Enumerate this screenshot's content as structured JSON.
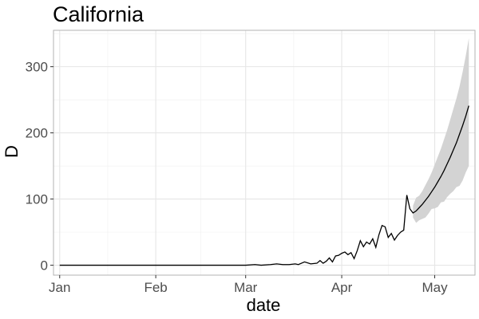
{
  "chart_data": {
    "type": "line",
    "title": "California",
    "xlabel": "date",
    "ylabel": "D",
    "xlim": [
      "2019-12-30",
      "2020-05-14"
    ],
    "ylim": [
      -15,
      355
    ],
    "x_ticks": [
      {
        "date": "2020-01-01",
        "label": "Jan"
      },
      {
        "date": "2020-02-01",
        "label": "Feb"
      },
      {
        "date": "2020-03-01",
        "label": "Mar"
      },
      {
        "date": "2020-04-01",
        "label": "Apr"
      },
      {
        "date": "2020-05-01",
        "label": "May"
      }
    ],
    "y_ticks": [
      0,
      100,
      200,
      300
    ],
    "grid": true,
    "series": [
      {
        "kind": "observed",
        "color": "#000000",
        "points": [
          [
            "2020-01-01",
            0
          ],
          [
            "2020-03-01",
            0
          ],
          [
            "2020-03-04",
            1
          ],
          [
            "2020-03-06",
            0
          ],
          [
            "2020-03-09",
            1
          ],
          [
            "2020-03-11",
            2
          ],
          [
            "2020-03-13",
            1
          ],
          [
            "2020-03-15",
            1
          ],
          [
            "2020-03-17",
            2
          ],
          [
            "2020-03-18",
            1
          ],
          [
            "2020-03-20",
            5
          ],
          [
            "2020-03-22",
            2
          ],
          [
            "2020-03-24",
            3
          ],
          [
            "2020-03-25",
            7
          ],
          [
            "2020-03-26",
            3
          ],
          [
            "2020-03-27",
            6
          ],
          [
            "2020-03-28",
            11
          ],
          [
            "2020-03-29",
            5
          ],
          [
            "2020-03-30",
            14
          ],
          [
            "2020-03-31",
            15
          ],
          [
            "2020-04-01",
            18
          ],
          [
            "2020-04-02",
            20
          ],
          [
            "2020-04-03",
            16
          ],
          [
            "2020-04-04",
            19
          ],
          [
            "2020-04-05",
            10
          ],
          [
            "2020-04-06",
            22
          ],
          [
            "2020-04-07",
            37
          ],
          [
            "2020-04-08",
            28
          ],
          [
            "2020-04-09",
            35
          ],
          [
            "2020-04-10",
            32
          ],
          [
            "2020-04-11",
            40
          ],
          [
            "2020-04-12",
            27
          ],
          [
            "2020-04-13",
            46
          ],
          [
            "2020-04-14",
            60
          ],
          [
            "2020-04-15",
            58
          ],
          [
            "2020-04-16",
            42
          ],
          [
            "2020-04-17",
            48
          ],
          [
            "2020-04-18",
            38
          ],
          [
            "2020-04-19",
            45
          ],
          [
            "2020-04-20",
            50
          ],
          [
            "2020-04-21",
            53
          ],
          [
            "2020-04-22",
            106
          ],
          [
            "2020-04-23",
            85
          ]
        ]
      },
      {
        "kind": "forecast",
        "color": "#000000",
        "points": [
          [
            "2020-04-23",
            85
          ],
          [
            "2020-04-24",
            79
          ],
          [
            "2020-04-25",
            82
          ],
          [
            "2020-04-26",
            87
          ],
          [
            "2020-04-27",
            92
          ],
          [
            "2020-04-28",
            98
          ],
          [
            "2020-04-29",
            104
          ],
          [
            "2020-04-30",
            111
          ],
          [
            "2020-05-01",
            118
          ],
          [
            "2020-05-02",
            126
          ],
          [
            "2020-05-03",
            134
          ],
          [
            "2020-05-04",
            143
          ],
          [
            "2020-05-05",
            153
          ],
          [
            "2020-05-06",
            163
          ],
          [
            "2020-05-07",
            174
          ],
          [
            "2020-05-08",
            185
          ],
          [
            "2020-05-09",
            198
          ],
          [
            "2020-05-10",
            211
          ],
          [
            "2020-05-11",
            225
          ],
          [
            "2020-05-12",
            241
          ]
        ]
      }
    ],
    "ribbon": {
      "fill": "#d3d3d3",
      "lower": [
        [
          "2020-04-24",
          72
        ],
        [
          "2020-04-25",
          64
        ],
        [
          "2020-04-26",
          68
        ],
        [
          "2020-04-27",
          70
        ],
        [
          "2020-04-28",
          72
        ],
        [
          "2020-04-29",
          78
        ],
        [
          "2020-04-30",
          85
        ],
        [
          "2020-05-01",
          86
        ],
        [
          "2020-05-02",
          88
        ],
        [
          "2020-05-03",
          95
        ],
        [
          "2020-05-04",
          96
        ],
        [
          "2020-05-05",
          103
        ],
        [
          "2020-05-06",
          108
        ],
        [
          "2020-05-07",
          112
        ],
        [
          "2020-05-08",
          118
        ],
        [
          "2020-05-09",
          120
        ],
        [
          "2020-05-10",
          128
        ],
        [
          "2020-05-11",
          140
        ],
        [
          "2020-05-12",
          150
        ]
      ],
      "upper": [
        [
          "2020-04-24",
          90
        ],
        [
          "2020-04-25",
          102
        ],
        [
          "2020-04-26",
          105
        ],
        [
          "2020-04-27",
          112
        ],
        [
          "2020-04-28",
          121
        ],
        [
          "2020-04-29",
          130
        ],
        [
          "2020-04-30",
          140
        ],
        [
          "2020-05-01",
          152
        ],
        [
          "2020-05-02",
          164
        ],
        [
          "2020-05-03",
          176
        ],
        [
          "2020-05-04",
          190
        ],
        [
          "2020-05-05",
          204
        ],
        [
          "2020-05-06",
          220
        ],
        [
          "2020-05-07",
          236
        ],
        [
          "2020-05-08",
          252
        ],
        [
          "2020-05-09",
          270
        ],
        [
          "2020-05-10",
          292
        ],
        [
          "2020-05-11",
          316
        ],
        [
          "2020-05-12",
          343
        ]
      ]
    }
  }
}
